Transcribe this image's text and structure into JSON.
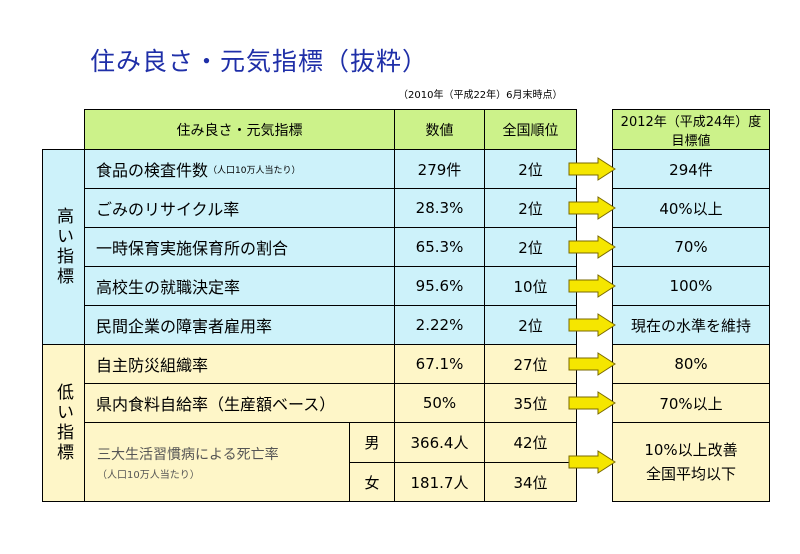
{
  "title": "住み良さ・元気指標（抜粋）",
  "as_of": "（2010年（平成22年）6月末時点）",
  "header": {
    "indicator": "住み良さ・元気指標",
    "value": "数値",
    "rank": "全国順位",
    "target_line1": "2012年（平成24年）度",
    "target_line2": "目標値"
  },
  "groups": {
    "high": "高い指標",
    "low": "低い指標"
  },
  "rows": [
    {
      "label": "食品の検査件数",
      "note": "（人口10万人当たり）",
      "value": "279件",
      "rank": "2位",
      "target": "294件"
    },
    {
      "label": "ごみのリサイクル率",
      "value": "28.3%",
      "rank": "2位",
      "target": "40%以上"
    },
    {
      "label": "一時保育実施保育所の割合",
      "value": "65.3%",
      "rank": "2位",
      "target": "70%"
    },
    {
      "label": "高校生の就職決定率",
      "value": "95.6%",
      "rank": "10位",
      "target": "100%"
    },
    {
      "label": "民間企業の障害者雇用率",
      "value": "2.22%",
      "rank": "2位",
      "target": "現在の水準を維持"
    },
    {
      "label": "自主防災組織率",
      "value": "67.1%",
      "rank": "27位",
      "target": "80%"
    },
    {
      "label": "県内食料自給率（生産額ベース）",
      "value": "50%",
      "rank": "35位",
      "target": "70%以上"
    }
  ],
  "disease": {
    "label": "三大生活習慣病による死亡率",
    "note": "（人口10万人当たり）",
    "male": {
      "sex": "男",
      "value": "366.4人",
      "rank": "42位"
    },
    "female": {
      "sex": "女",
      "value": "181.7人",
      "rank": "34位"
    },
    "target_line1": "10%以上改善",
    "target_line2": "全国平均以下"
  },
  "colors": {
    "header": "#ccf28a",
    "high_rows": "#cdf2fa",
    "low_rows": "#fef6c8",
    "arrow": "#f5e600",
    "title": "#1f2fa8"
  }
}
